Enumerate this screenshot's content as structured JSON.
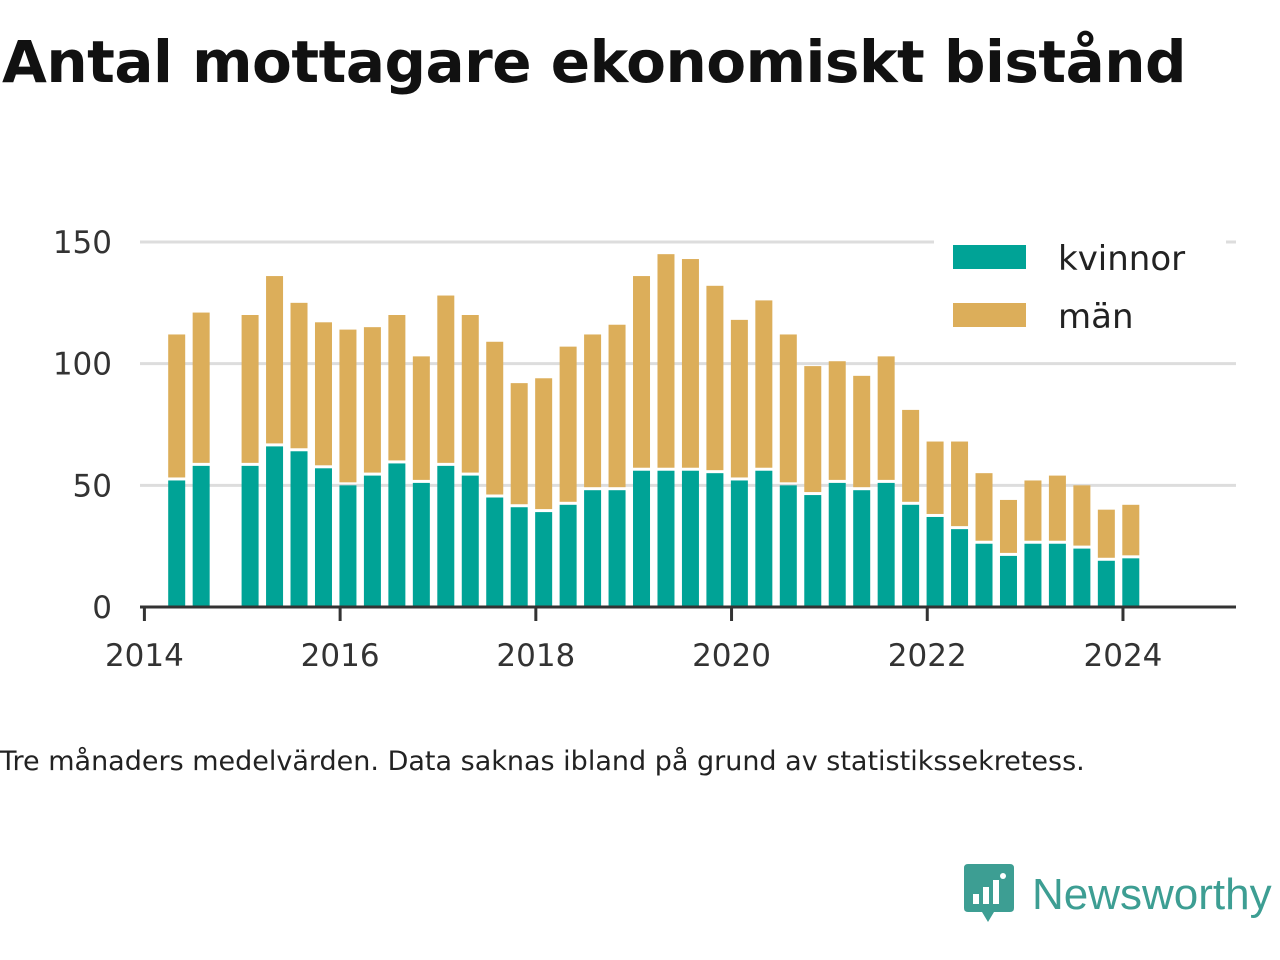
{
  "title": "Antal mottagare ekonomiskt bistånd",
  "note": "Tre månaders medelvärden. Data saknas ibland på grund av statistikssekretess.",
  "brand": {
    "name": "Newsworthy",
    "icon": "newsworthy-logo-icon",
    "color": "#3d9e93"
  },
  "colors": {
    "kvinnor": "#00a396",
    "man": "#dcae5a",
    "grid": "#dddddd",
    "axis": "#333333"
  },
  "chart_data": {
    "type": "bar",
    "stacked": true,
    "x_ticks": [
      "2014",
      "2016",
      "2018",
      "2020",
      "2022",
      "2024"
    ],
    "y_ticks": [
      0,
      50,
      100,
      150
    ],
    "ylim": [
      0,
      150
    ],
    "grid": true,
    "legend": "top-right",
    "categories": [
      "2014-Q2",
      "2014-Q3",
      "2014-Q4",
      "2015-Q1",
      "2015-Q2",
      "2015-Q3",
      "2015-Q4",
      "2016-Q1",
      "2016-Q2",
      "2016-Q3",
      "2016-Q4",
      "2017-Q1",
      "2017-Q2",
      "2017-Q3",
      "2017-Q4",
      "2018-Q1",
      "2018-Q2",
      "2018-Q3",
      "2018-Q4",
      "2019-Q1",
      "2019-Q2",
      "2019-Q3",
      "2019-Q4",
      "2020-Q1",
      "2020-Q2",
      "2020-Q3",
      "2020-Q4",
      "2021-Q1",
      "2021-Q2",
      "2021-Q3",
      "2021-Q4",
      "2022-Q1",
      "2022-Q2",
      "2022-Q3",
      "2022-Q4",
      "2023-Q1",
      "2023-Q2",
      "2023-Q3",
      "2023-Q4",
      "2024-Q1"
    ],
    "series": [
      {
        "name": "kvinnor",
        "color": "#00a396",
        "values": [
          52,
          58,
          null,
          58,
          66,
          64,
          57,
          50,
          54,
          59,
          51,
          58,
          54,
          45,
          41,
          39,
          42,
          48,
          48,
          56,
          56,
          56,
          55,
          52,
          56,
          50,
          46,
          51,
          48,
          51,
          42,
          37,
          32,
          26,
          21,
          26,
          26,
          24,
          19,
          20
        ]
      },
      {
        "name": "män",
        "color": "#dcae5a",
        "values": [
          60,
          63,
          null,
          62,
          70,
          61,
          60,
          64,
          61,
          61,
          52,
          70,
          66,
          64,
          51,
          55,
          65,
          64,
          68,
          80,
          89,
          87,
          77,
          66,
          70,
          62,
          53,
          50,
          47,
          52,
          39,
          31,
          36,
          29,
          23,
          26,
          28,
          26,
          21,
          22
        ]
      }
    ]
  }
}
